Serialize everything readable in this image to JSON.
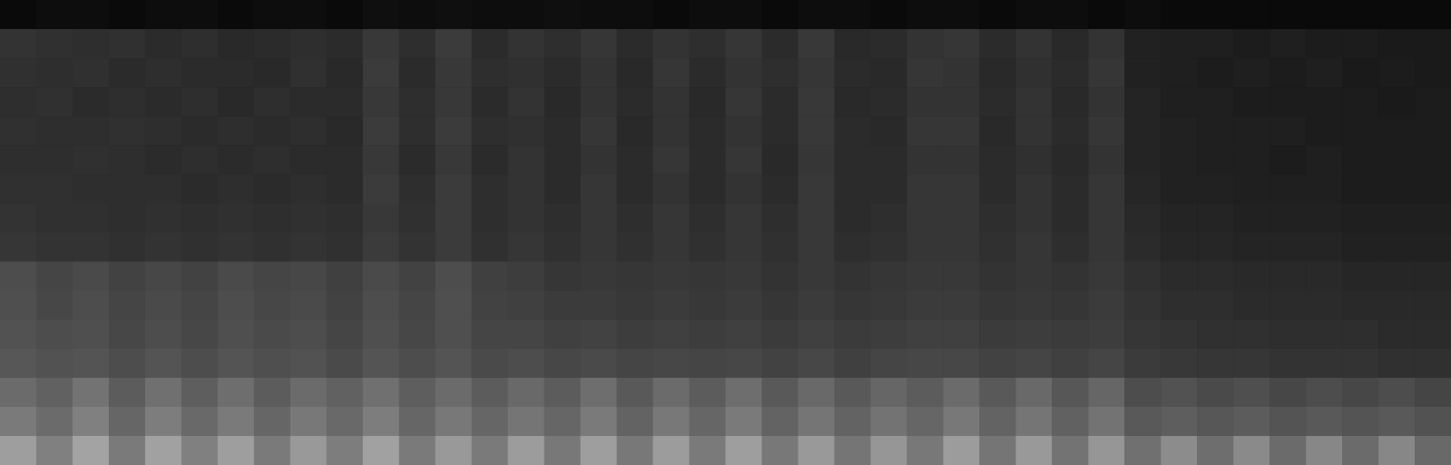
{
  "chart_data": {
    "type": "heatmap",
    "tick_labels": false,
    "color": "#ffffff",
    "zlim": [
      0,
      1
    ],
    "values": [
      [
        0.04,
        0.05,
        0.05,
        0.04,
        0.05,
        0.05,
        0.04,
        0.05,
        0.05,
        0.04,
        0.06,
        0.05,
        0.06,
        0.05,
        0.05,
        0.06,
        0.05,
        0.05,
        0.04,
        0.05,
        0.05,
        0.04,
        0.05,
        0.05,
        0.04,
        0.05,
        0.05,
        0.04,
        0.05,
        0.05,
        0.04,
        0.05,
        0.04,
        0.04,
        0.04,
        0.04,
        0.04,
        0.04,
        0.04,
        0.04
      ],
      [
        0.2,
        0.19,
        0.18,
        0.19,
        0.17,
        0.18,
        0.16,
        0.17,
        0.18,
        0.17,
        0.22,
        0.18,
        0.23,
        0.17,
        0.2,
        0.18,
        0.21,
        0.17,
        0.2,
        0.18,
        0.21,
        0.17,
        0.22,
        0.16,
        0.17,
        0.2,
        0.21,
        0.17,
        0.2,
        0.16,
        0.2,
        0.13,
        0.12,
        0.12,
        0.11,
        0.12,
        0.11,
        0.11,
        0.1,
        0.1
      ],
      [
        0.19,
        0.18,
        0.19,
        0.17,
        0.18,
        0.17,
        0.17,
        0.16,
        0.19,
        0.16,
        0.23,
        0.17,
        0.22,
        0.18,
        0.19,
        0.17,
        0.2,
        0.16,
        0.21,
        0.17,
        0.2,
        0.18,
        0.21,
        0.17,
        0.16,
        0.21,
        0.2,
        0.16,
        0.19,
        0.17,
        0.21,
        0.13,
        0.12,
        0.11,
        0.12,
        0.11,
        0.12,
        0.1,
        0.11,
        0.1
      ],
      [
        0.18,
        0.19,
        0.17,
        0.18,
        0.17,
        0.18,
        0.16,
        0.18,
        0.17,
        0.17,
        0.22,
        0.18,
        0.22,
        0.17,
        0.2,
        0.16,
        0.2,
        0.17,
        0.2,
        0.16,
        0.21,
        0.17,
        0.22,
        0.16,
        0.17,
        0.2,
        0.2,
        0.17,
        0.2,
        0.16,
        0.2,
        0.14,
        0.12,
        0.12,
        0.11,
        0.11,
        0.11,
        0.11,
        0.1,
        0.11
      ],
      [
        0.19,
        0.18,
        0.18,
        0.19,
        0.18,
        0.17,
        0.18,
        0.17,
        0.18,
        0.16,
        0.23,
        0.18,
        0.23,
        0.18,
        0.19,
        0.17,
        0.21,
        0.16,
        0.2,
        0.17,
        0.2,
        0.17,
        0.22,
        0.17,
        0.16,
        0.21,
        0.21,
        0.16,
        0.2,
        0.17,
        0.21,
        0.14,
        0.13,
        0.12,
        0.12,
        0.12,
        0.11,
        0.11,
        0.11,
        0.11
      ],
      [
        0.18,
        0.18,
        0.19,
        0.18,
        0.17,
        0.18,
        0.17,
        0.18,
        0.17,
        0.17,
        0.22,
        0.17,
        0.22,
        0.17,
        0.2,
        0.17,
        0.2,
        0.17,
        0.21,
        0.17,
        0.21,
        0.16,
        0.21,
        0.17,
        0.17,
        0.2,
        0.2,
        0.17,
        0.19,
        0.16,
        0.2,
        0.14,
        0.13,
        0.12,
        0.12,
        0.11,
        0.12,
        0.11,
        0.11,
        0.11
      ],
      [
        0.19,
        0.19,
        0.18,
        0.18,
        0.18,
        0.17,
        0.18,
        0.17,
        0.18,
        0.17,
        0.23,
        0.18,
        0.23,
        0.18,
        0.2,
        0.17,
        0.21,
        0.17,
        0.2,
        0.17,
        0.2,
        0.17,
        0.22,
        0.17,
        0.17,
        0.21,
        0.21,
        0.17,
        0.2,
        0.17,
        0.21,
        0.15,
        0.13,
        0.13,
        0.12,
        0.12,
        0.12,
        0.11,
        0.11,
        0.11
      ],
      [
        0.2,
        0.19,
        0.19,
        0.18,
        0.19,
        0.18,
        0.19,
        0.18,
        0.19,
        0.18,
        0.22,
        0.19,
        0.23,
        0.18,
        0.2,
        0.18,
        0.21,
        0.18,
        0.21,
        0.18,
        0.21,
        0.18,
        0.22,
        0.17,
        0.18,
        0.21,
        0.21,
        0.18,
        0.2,
        0.17,
        0.21,
        0.16,
        0.14,
        0.14,
        0.13,
        0.13,
        0.13,
        0.12,
        0.12,
        0.12
      ],
      [
        0.21,
        0.2,
        0.2,
        0.19,
        0.2,
        0.19,
        0.2,
        0.19,
        0.2,
        0.19,
        0.23,
        0.2,
        0.23,
        0.19,
        0.21,
        0.19,
        0.21,
        0.19,
        0.21,
        0.19,
        0.21,
        0.19,
        0.22,
        0.18,
        0.19,
        0.21,
        0.21,
        0.19,
        0.21,
        0.18,
        0.21,
        0.17,
        0.15,
        0.15,
        0.14,
        0.14,
        0.14,
        0.13,
        0.13,
        0.13
      ],
      [
        0.3,
        0.27,
        0.29,
        0.26,
        0.28,
        0.26,
        0.29,
        0.27,
        0.28,
        0.25,
        0.29,
        0.26,
        0.3,
        0.25,
        0.24,
        0.21,
        0.22,
        0.21,
        0.22,
        0.21,
        0.22,
        0.2,
        0.22,
        0.2,
        0.21,
        0.22,
        0.22,
        0.2,
        0.21,
        0.2,
        0.22,
        0.19,
        0.17,
        0.17,
        0.16,
        0.16,
        0.16,
        0.15,
        0.15,
        0.15
      ],
      [
        0.31,
        0.28,
        0.3,
        0.27,
        0.29,
        0.27,
        0.3,
        0.28,
        0.29,
        0.26,
        0.3,
        0.27,
        0.31,
        0.26,
        0.25,
        0.23,
        0.23,
        0.22,
        0.23,
        0.22,
        0.23,
        0.21,
        0.23,
        0.21,
        0.22,
        0.23,
        0.23,
        0.21,
        0.22,
        0.21,
        0.23,
        0.2,
        0.18,
        0.18,
        0.17,
        0.17,
        0.17,
        0.16,
        0.16,
        0.16
      ],
      [
        0.32,
        0.3,
        0.31,
        0.28,
        0.3,
        0.28,
        0.31,
        0.29,
        0.3,
        0.27,
        0.31,
        0.28,
        0.31,
        0.27,
        0.27,
        0.25,
        0.26,
        0.24,
        0.25,
        0.24,
        0.25,
        0.23,
        0.25,
        0.23,
        0.24,
        0.25,
        0.25,
        0.23,
        0.24,
        0.23,
        0.24,
        0.21,
        0.2,
        0.19,
        0.19,
        0.18,
        0.18,
        0.18,
        0.17,
        0.17
      ],
      [
        0.34,
        0.32,
        0.33,
        0.3,
        0.33,
        0.3,
        0.33,
        0.31,
        0.32,
        0.29,
        0.33,
        0.3,
        0.33,
        0.29,
        0.3,
        0.28,
        0.29,
        0.27,
        0.28,
        0.27,
        0.28,
        0.26,
        0.28,
        0.25,
        0.27,
        0.28,
        0.28,
        0.26,
        0.27,
        0.25,
        0.27,
        0.23,
        0.22,
        0.21,
        0.21,
        0.2,
        0.2,
        0.2,
        0.19,
        0.19
      ],
      [
        0.42,
        0.38,
        0.45,
        0.36,
        0.44,
        0.37,
        0.43,
        0.36,
        0.42,
        0.38,
        0.44,
        0.37,
        0.42,
        0.36,
        0.41,
        0.36,
        0.43,
        0.35,
        0.42,
        0.36,
        0.43,
        0.35,
        0.41,
        0.35,
        0.4,
        0.36,
        0.42,
        0.35,
        0.41,
        0.34,
        0.4,
        0.3,
        0.32,
        0.29,
        0.31,
        0.28,
        0.3,
        0.28,
        0.3,
        0.27
      ],
      [
        0.48,
        0.42,
        0.5,
        0.4,
        0.49,
        0.41,
        0.48,
        0.4,
        0.47,
        0.41,
        0.49,
        0.4,
        0.47,
        0.4,
        0.46,
        0.4,
        0.48,
        0.39,
        0.47,
        0.4,
        0.48,
        0.39,
        0.46,
        0.39,
        0.45,
        0.4,
        0.47,
        0.39,
        0.46,
        0.38,
        0.45,
        0.35,
        0.37,
        0.34,
        0.36,
        0.33,
        0.35,
        0.33,
        0.35,
        0.32
      ],
      [
        0.62,
        0.5,
        0.64,
        0.48,
        0.63,
        0.5,
        0.62,
        0.48,
        0.6,
        0.49,
        0.63,
        0.48,
        0.6,
        0.48,
        0.61,
        0.47,
        0.62,
        0.47,
        0.61,
        0.48,
        0.62,
        0.47,
        0.6,
        0.46,
        0.59,
        0.47,
        0.61,
        0.46,
        0.6,
        0.45,
        0.59,
        0.44,
        0.55,
        0.43,
        0.54,
        0.42,
        0.53,
        0.42,
        0.53,
        0.41
      ]
    ]
  }
}
